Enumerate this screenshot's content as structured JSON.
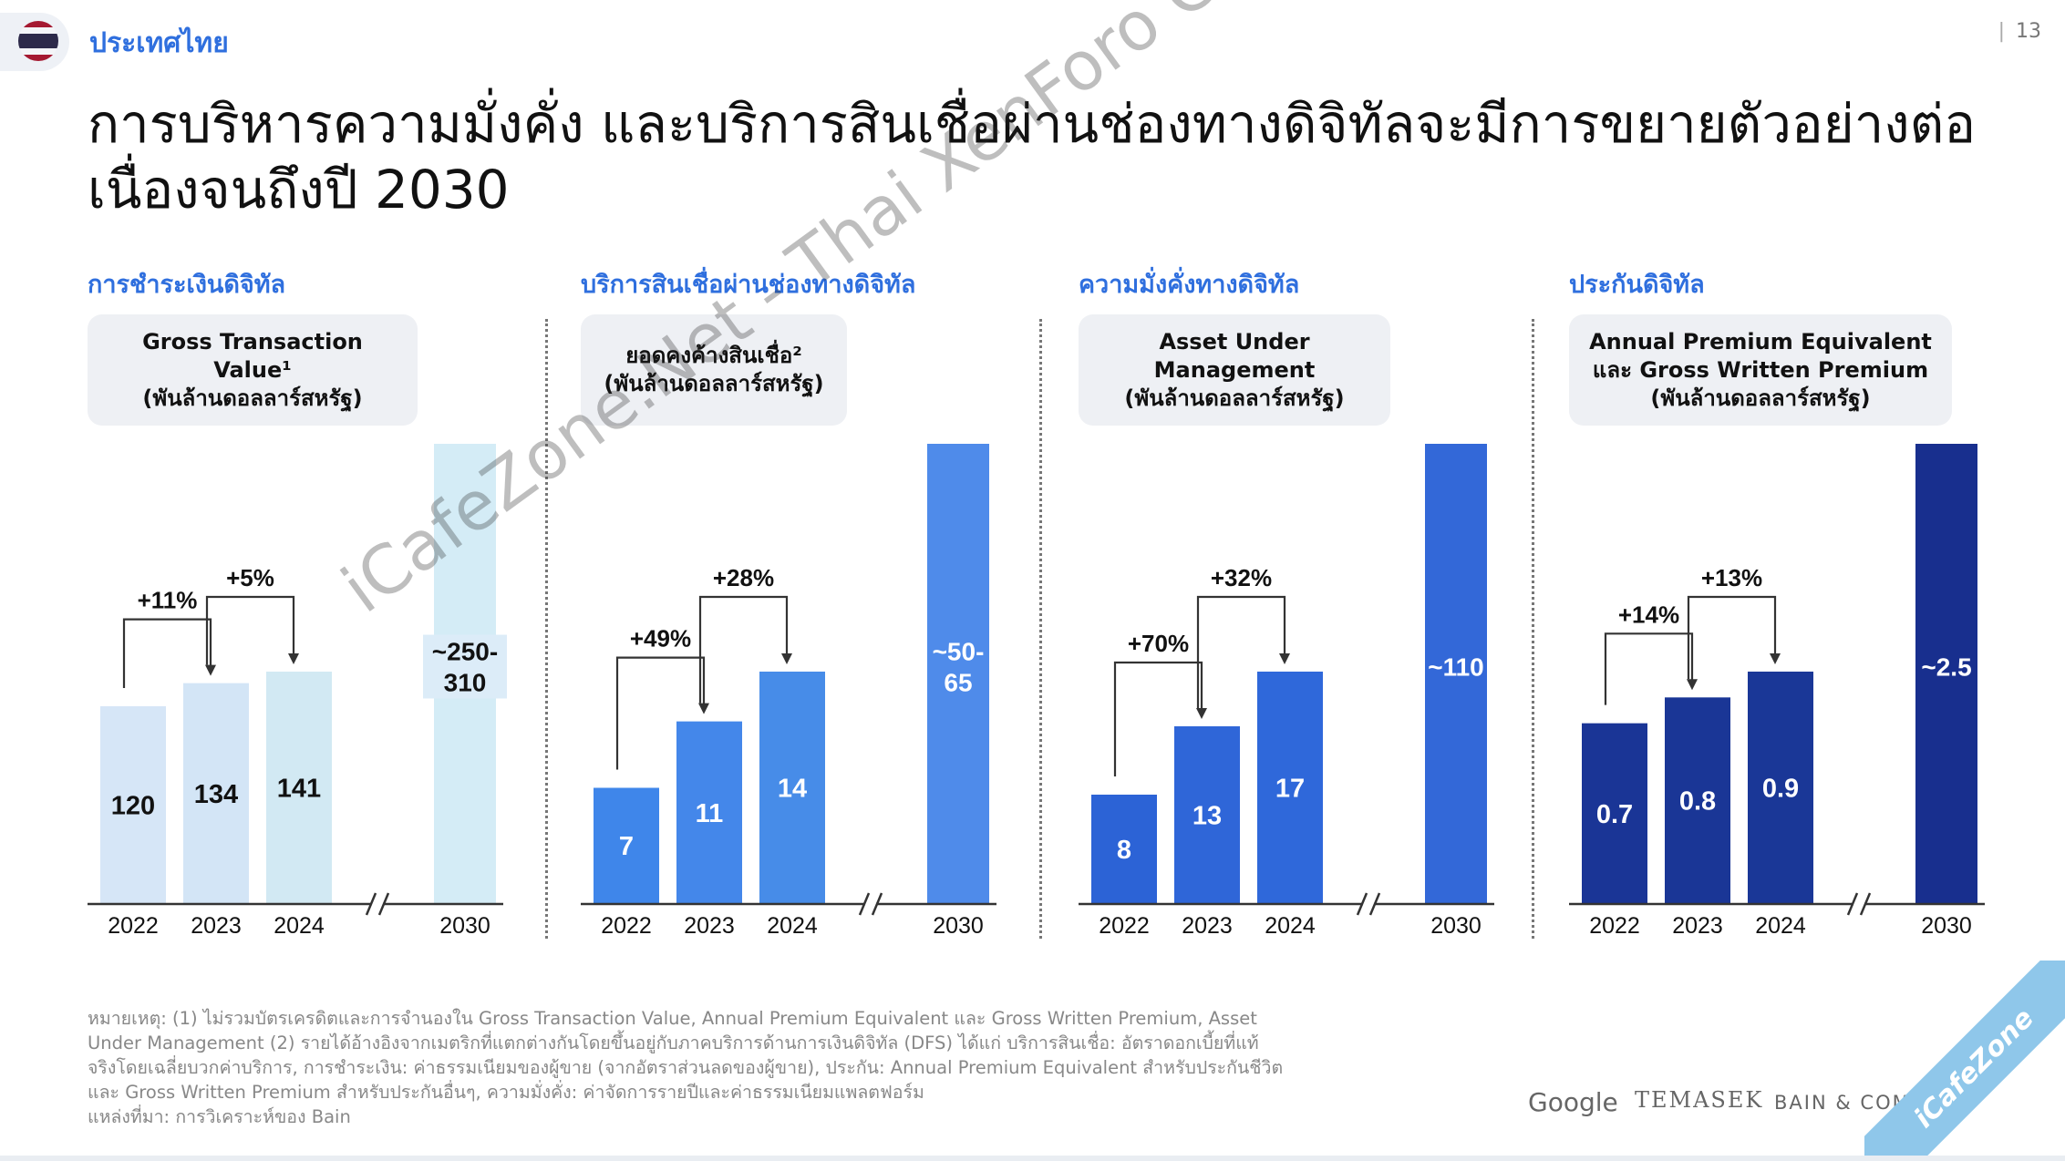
{
  "header": {
    "country": "ประเทศไทย",
    "page_number": "13",
    "title_line1": "การบริหารความมั่งคั่ง และบริการสินเชื่อผ่านช่องทางดิจิทัลจะมีการขยายตัวอย่างต่อ",
    "title_line2": "เนื่องจนถึงปี 2030"
  },
  "flag_colors": [
    "#A51931",
    "#F4F5F8",
    "#2D2A4A",
    "#F4F5F8",
    "#A51931"
  ],
  "chart_data": [
    {
      "type": "bar",
      "panel_title": "การชำระเงินดิจิทัล",
      "metric_lines": [
        "Gross Transaction Value¹",
        "(พันล้านดอลลาร์สหรัฐ)"
      ],
      "categories": [
        "2022",
        "2023",
        "2024",
        "2030"
      ],
      "values": [
        120,
        134,
        141,
        310
      ],
      "value_labels": [
        "120",
        "134",
        "141",
        "~250-\n310"
      ],
      "growth_labels": [
        "+11%",
        "+5%"
      ],
      "colors": [
        "#d6e6f7",
        "#d3e5f6",
        "#d2e9f3",
        "#d4ecf6"
      ],
      "axis_break": true
    },
    {
      "type": "bar",
      "panel_title": "บริการสินเชื่อผ่านช่องทางดิจิทัล",
      "metric_lines": [
        "ยอดคงค้างสินเชื่อ²",
        "(พันล้านดอลลาร์สหรัฐ)"
      ],
      "categories": [
        "2022",
        "2023",
        "2024",
        "2030"
      ],
      "values": [
        7,
        11,
        14,
        65
      ],
      "value_labels": [
        "7",
        "11",
        "14",
        "~50-\n65"
      ],
      "growth_labels": [
        "+49%",
        "+28%"
      ],
      "colors": [
        "#3f86ea",
        "#4487ea",
        "#478ce8",
        "#4f8bea"
      ],
      "axis_break": true
    },
    {
      "type": "bar",
      "panel_title": "ความมั่งคั่งทางดิจิทัล",
      "metric_lines": [
        "Asset Under",
        "Management",
        "(พันล้านดอลลาร์สหรัฐ)"
      ],
      "categories": [
        "2022",
        "2023",
        "2024",
        "2030"
      ],
      "values": [
        8,
        13,
        17,
        110
      ],
      "value_labels": [
        "8",
        "13",
        "17",
        "~110"
      ],
      "growth_labels": [
        "+70%",
        "+32%"
      ],
      "colors": [
        "#2c63d6",
        "#2f66d8",
        "#2f68da",
        "#3368d8"
      ],
      "axis_break": true
    },
    {
      "type": "bar",
      "panel_title": "ประกันดิจิทัล",
      "metric_lines": [
        "Annual Premium Equivalent",
        "และ Gross Written Premium",
        "(พันล้านดอลลาร์สหรัฐ)"
      ],
      "categories": [
        "2022",
        "2023",
        "2024",
        "2030"
      ],
      "values": [
        0.7,
        0.8,
        0.9,
        2.5
      ],
      "value_labels": [
        "0.7",
        "0.8",
        "0.9",
        "~2.5"
      ],
      "growth_labels": [
        "+14%",
        "+13%"
      ],
      "colors": [
        "#1a3596",
        "#1a3696",
        "#1a3797",
        "#182f8e"
      ],
      "axis_break": true
    }
  ],
  "footnote_lines": [
    "หมายเหตุ: (1) ไม่รวมบัตรเครดิตและการจำนองใน Gross Transaction Value, Annual Premium Equivalent และ Gross Written Premium, Asset",
    "Under Management (2) รายได้อ้างอิงจากเมตริกที่แตกต่างกันโดยขึ้นอยู่กับภาคบริการด้านการเงินดิจิทัล (DFS) ได้แก่ บริการสินเชื่อ: อัตราดอกเบี้ยที่แท้",
    "จริงโดยเฉลี่ยบวกค่าบริการ, การชำระเงิน: ค่าธรรมเนียมของผู้ขาย (จากอัตราส่วนลดของผู้ขาย), ประกัน: Annual Premium Equivalent สำหรับประกันชีวิต",
    "และ Gross Written Premium สำหรับประกันอื่นๆ, ความมั่งคั่ง: ค่าจัดการรายปีและค่าธรรมเนียมแพลตฟอร์ม",
    "แหล่งที่มา: การวิเคราะห์ของ Bain"
  ],
  "logos": {
    "google": "Google",
    "temasek": "TEMASEK",
    "bain": "BAIN & COMPANY"
  },
  "watermark": "iCafeZone.Net - Thai XenForo Community",
  "corner_watermark": "iCafeZone"
}
